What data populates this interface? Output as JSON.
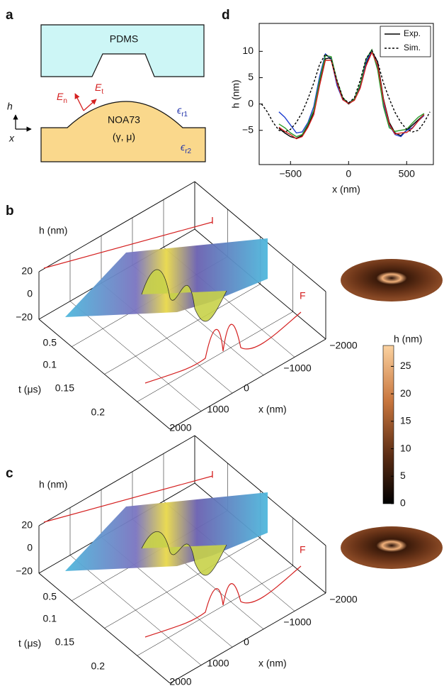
{
  "panel_labels": [
    "a",
    "b",
    "c",
    "d"
  ],
  "diagram": {
    "top_layer": "PDMS",
    "bottom_layer": "NOA73",
    "parameters": "(γ, μ)",
    "normal_field": {
      "symbol": "E",
      "subscript": "n"
    },
    "tangential_field": {
      "symbol": "E",
      "subscript": "t"
    },
    "permittivity_top": {
      "symbol": "ϵ",
      "subscript": "r1"
    },
    "permittivity_bottom": {
      "symbol": "ϵ",
      "subscript": "r2"
    },
    "vertical_axis": "h",
    "horizontal_axis": "x"
  },
  "chart_data": {
    "type": "line",
    "xlabel": "x (nm)",
    "ylabel": "h (nm)",
    "x": [
      -750,
      -700,
      -650,
      -600,
      -550,
      -500,
      -450,
      -400,
      -350,
      -300,
      -250,
      -200,
      -150,
      -100,
      -50,
      0,
      50,
      100,
      150,
      200,
      250,
      300,
      350,
      400,
      450,
      500,
      550,
      600,
      650,
      700
    ],
    "series": [
      {
        "name": "Exp.",
        "color": "#000000",
        "values": [
          null,
          null,
          null,
          -4.6,
          -5.5,
          -6.2,
          -6.5,
          -6.0,
          -4.2,
          -1.5,
          4.0,
          8.6,
          8.8,
          4.2,
          1.0,
          0.0,
          0.8,
          3.2,
          7.5,
          10.0,
          8.0,
          1.0,
          -3.5,
          -5.5,
          -6.0,
          -5.0,
          -4.0,
          -3.0,
          -2.0,
          null
        ]
      },
      {
        "color": "#1f3fd0",
        "values": [
          null,
          null,
          null,
          -1.5,
          -2.5,
          -4.0,
          -5.5,
          -5.3,
          -3.5,
          -0.5,
          5.2,
          9.5,
          8.5,
          3.5,
          0.8,
          0.2,
          1.0,
          3.6,
          8.0,
          10.2,
          7.0,
          0.0,
          -4.0,
          -5.8,
          -6.2,
          -5.0,
          -4.5,
          -3.2,
          -2.2,
          null
        ]
      },
      {
        "color": "#2a9a2a",
        "values": [
          null,
          null,
          null,
          -3.8,
          -4.5,
          -5.5,
          -6.2,
          -5.8,
          -3.8,
          -1.2,
          4.5,
          9.2,
          9.0,
          4.4,
          1.2,
          0.1,
          1.0,
          3.8,
          8.5,
          10.3,
          6.5,
          -0.5,
          -4.5,
          -5.2,
          -5.0,
          -4.8,
          -3.6,
          -2.5,
          -1.8,
          null
        ]
      },
      {
        "color": "#d42020",
        "values": [
          null,
          null,
          null,
          -4.4,
          -5.2,
          -5.8,
          -6.6,
          -6.2,
          -4.4,
          -2.0,
          3.5,
          8.3,
          8.3,
          4.0,
          0.8,
          0.1,
          0.7,
          3.0,
          7.2,
          9.8,
          7.4,
          0.8,
          -3.8,
          -5.7,
          -5.5,
          -5.4,
          -4.6,
          -3.2,
          -2.0,
          null
        ]
      },
      {
        "name": "Sim.",
        "color": "#000000",
        "dashed": true,
        "values": [
          0,
          -1.5,
          -3.5,
          -5.0,
          -5.3,
          -4.8,
          -3.5,
          -1.6,
          1.0,
          4.0,
          7.5,
          9.5,
          8.4,
          4.5,
          1.2,
          0.2,
          1.2,
          4.5,
          8.6,
          10.2,
          8.0,
          4.0,
          1.0,
          -1.6,
          -3.5,
          -4.8,
          -5.3,
          -5.0,
          -3.5,
          -1.5
        ]
      }
    ],
    "xlim": [
      -770,
      730
    ],
    "ylim": [
      -11.5,
      15.3
    ],
    "xticks": [
      {
        "value": -500,
        "label": "−500"
      },
      0,
      500
    ],
    "yticks": [
      {
        "value": -5,
        "label": "−5"
      },
      0,
      5,
      10
    ],
    "legend": "upper right"
  },
  "surface_b": {
    "h_axis_label": "h (nm)",
    "h_ticks": [
      "20",
      "0",
      "−20"
    ],
    "t_axis_label": "t (μs)",
    "t_ticks": [
      "0.5",
      "0.1",
      "0.15",
      "0.2"
    ],
    "x_axis_label": "x (nm)",
    "x_ticks": [
      "−2000",
      "−1000",
      "0",
      "1000",
      "2000"
    ],
    "initial_marker": "I",
    "final_marker": "F"
  },
  "surface_c": {
    "h_axis_label": "h (nm)",
    "h_ticks": [
      "20",
      "0",
      "−20"
    ],
    "t_axis_label": "t (μs)",
    "t_ticks": [
      "0.5",
      "0.1",
      "0.15",
      "0.2"
    ],
    "x_axis_label": "x (nm)",
    "x_ticks": [
      "−2000",
      "−1000",
      "0",
      "1000",
      "2000"
    ],
    "initial_marker": "I",
    "final_marker": "F"
  },
  "colorbar": {
    "title": "h (nm)",
    "clim": [
      0,
      28.8
    ],
    "ticks": [
      0,
      5,
      10,
      15,
      20,
      25
    ]
  }
}
